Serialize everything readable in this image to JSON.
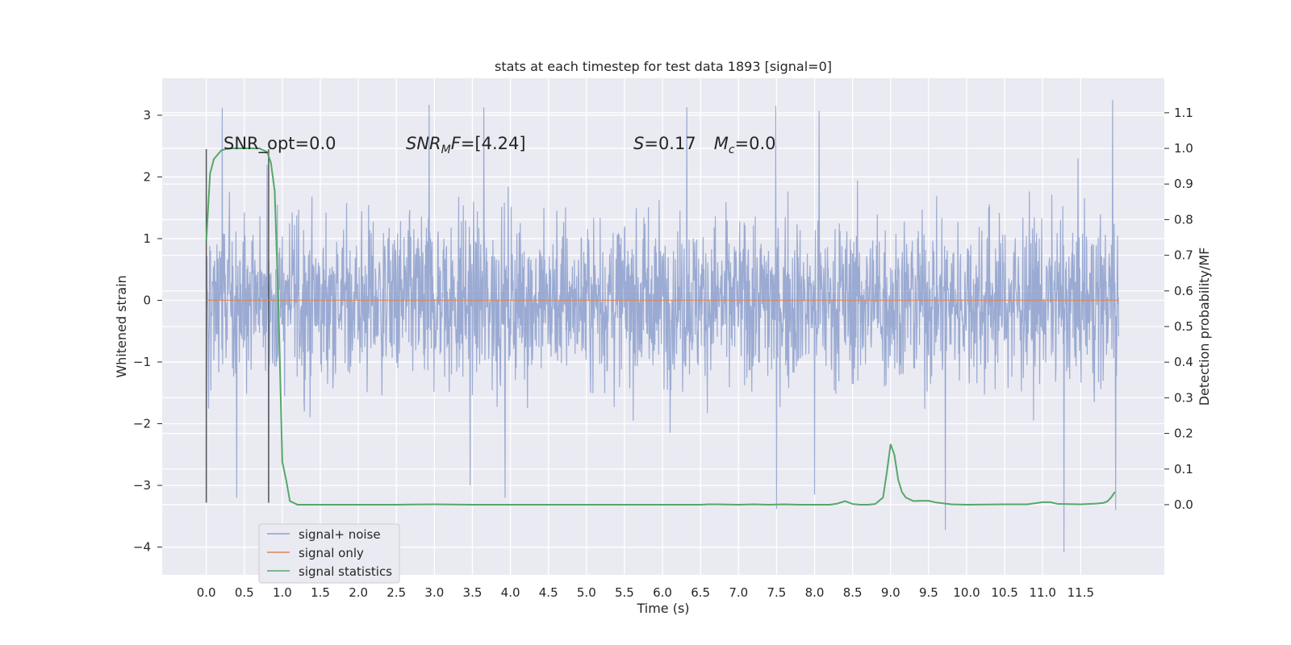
{
  "chart_data": {
    "type": "line",
    "title": "stats at each timestep for test data 1893 [signal=0]",
    "xlabel": "Time (s)",
    "ylabel": "Whitened strain",
    "y2label": "Detection probability/MF",
    "xlim": [
      -0.58,
      12.6
    ],
    "ylim": [
      -4.45,
      3.6
    ],
    "y2lim": [
      -0.197,
      1.197
    ],
    "xticks": [
      0.0,
      0.5,
      1.0,
      1.5,
      2.0,
      2.5,
      3.0,
      3.5,
      4.0,
      4.5,
      5.0,
      5.5,
      6.0,
      6.5,
      7.0,
      7.5,
      8.0,
      8.5,
      9.0,
      9.5,
      10.0,
      10.5,
      11.0,
      11.5
    ],
    "xtick_labels": [
      "0.0",
      "0.5",
      "1.0",
      "1.5",
      "2.0",
      "2.5",
      "3.0",
      "3.5",
      "4.0",
      "4.5",
      "5.0",
      "5.5",
      "6.0",
      "6.5",
      "7.0",
      "7.5",
      "8.0",
      "8.5",
      "9.0",
      "9.5",
      "10.0",
      "10.5",
      "11.0",
      "11.5"
    ],
    "yticks": [
      -4,
      -3,
      -2,
      -1,
      0,
      1,
      2,
      3
    ],
    "ytick_labels": [
      "−4",
      "−3",
      "−2",
      "−1",
      "0",
      "1",
      "2",
      "3"
    ],
    "y2ticks": [
      0.0,
      0.1,
      0.2,
      0.3,
      0.4,
      0.5,
      0.6,
      0.7,
      0.8,
      0.9,
      1.0,
      1.1
    ],
    "y2tick_labels": [
      "0.0",
      "0.1",
      "0.2",
      "0.3",
      "0.4",
      "0.5",
      "0.6",
      "0.7",
      "0.8",
      "0.9",
      "1.0",
      "1.1"
    ],
    "grid": true,
    "legend_position": "lower-left",
    "annotations": [
      {
        "text": "SNR_opt=0.0",
        "x": 0.2,
        "y": 2.55
      },
      {
        "text": "SNR_MF=[4.24]",
        "x": 2.6,
        "y": 2.55
      },
      {
        "text": "S=0.17   M_c=0.0",
        "x": 5.6,
        "y": 2.55
      }
    ],
    "vertical_markers": [
      0.0,
      0.82
    ],
    "series": [
      {
        "name": "signal+ noise",
        "axis": "left",
        "color": "#8c9fcc",
        "x_range": [
          0.0,
          12.0
        ],
        "typical_envelope": [
          -1.3,
          1.3
        ],
        "peaks": [
          {
            "x": 0.21,
            "y": 3.12
          },
          {
            "x": 0.8,
            "y": 2.2
          },
          {
            "x": 2.93,
            "y": 3.17
          },
          {
            "x": 3.65,
            "y": 3.13
          },
          {
            "x": 6.32,
            "y": 3.13
          },
          {
            "x": 7.49,
            "y": 3.15
          },
          {
            "x": 8.06,
            "y": 3.07
          },
          {
            "x": 11.92,
            "y": 3.25
          }
        ],
        "troughs": [
          {
            "x": 0.0,
            "y": -3.28
          },
          {
            "x": 0.4,
            "y": -3.2
          },
          {
            "x": 0.82,
            "y": -3.28
          },
          {
            "x": 3.47,
            "y": -3.0
          },
          {
            "x": 3.93,
            "y": -3.2
          },
          {
            "x": 7.5,
            "y": -3.38
          },
          {
            "x": 8.0,
            "y": -3.15
          },
          {
            "x": 9.72,
            "y": -3.72
          },
          {
            "x": 11.28,
            "y": -4.08
          },
          {
            "x": 11.96,
            "y": -3.4
          }
        ]
      },
      {
        "name": "signal only",
        "axis": "left",
        "color": "#dd8452",
        "x": [
          0.0,
          12.0
        ],
        "y": [
          0.0,
          0.0
        ]
      },
      {
        "name": "signal statistics",
        "axis": "right",
        "color": "#55a868",
        "x": [
          0.0,
          0.05,
          0.1,
          0.2,
          0.3,
          0.4,
          0.5,
          0.6,
          0.7,
          0.75,
          0.8,
          0.85,
          0.9,
          0.95,
          1.0,
          1.05,
          1.1,
          1.2,
          1.5,
          2.0,
          2.5,
          3.0,
          3.5,
          4.0,
          4.5,
          5.0,
          5.5,
          6.0,
          6.5,
          6.6,
          6.7,
          7.0,
          7.2,
          7.4,
          7.6,
          7.8,
          8.0,
          8.2,
          8.3,
          8.4,
          8.5,
          8.6,
          8.7,
          8.8,
          8.9,
          8.95,
          9.0,
          9.05,
          9.1,
          9.15,
          9.2,
          9.3,
          9.4,
          9.5,
          9.6,
          9.8,
          10.0,
          10.5,
          10.8,
          11.0,
          11.1,
          11.2,
          11.5,
          11.7,
          11.8,
          11.85,
          11.9,
          11.95
        ],
        "y": [
          0.74,
          0.93,
          0.97,
          0.995,
          1.0,
          1.0,
          1.0,
          1.0,
          1.0,
          0.995,
          0.99,
          0.96,
          0.88,
          0.55,
          0.12,
          0.07,
          0.01,
          0.0,
          0.0,
          0.0,
          0.0,
          0.001,
          0.0,
          0.0,
          0.0,
          0.0,
          0.0,
          0.0,
          0.0,
          0.001,
          0.001,
          0.0,
          0.001,
          0.0,
          0.001,
          0.0,
          0.0,
          0.0,
          0.003,
          0.01,
          0.002,
          0.0,
          0.0,
          0.002,
          0.02,
          0.09,
          0.17,
          0.14,
          0.07,
          0.035,
          0.02,
          0.01,
          0.011,
          0.011,
          0.006,
          0.001,
          0.0,
          0.001,
          0.001,
          0.007,
          0.007,
          0.002,
          0.001,
          0.003,
          0.005,
          0.009,
          0.02,
          0.036
        ]
      }
    ]
  }
}
